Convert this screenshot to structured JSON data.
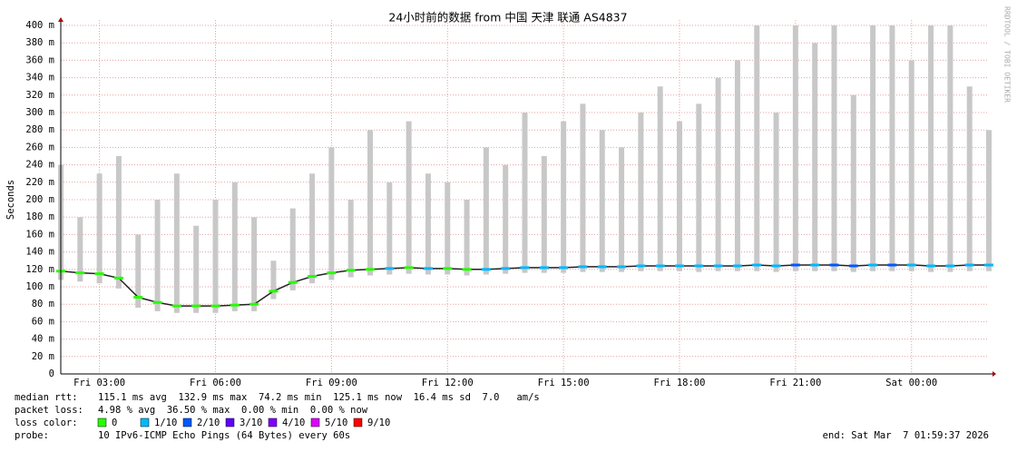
{
  "chart_data": {
    "type": "smokeping",
    "title": "24小时前的数据 from  中国 天津 联通 AS4837",
    "y_label": "Seconds",
    "side_label": "RRDTOOL / TOBI OETIKER",
    "xlim": [
      2,
      26
    ],
    "xticks": [
      {
        "value": 3,
        "label": "Fri 03:00"
      },
      {
        "value": 6,
        "label": "Fri 06:00"
      },
      {
        "value": 9,
        "label": "Fri 09:00"
      },
      {
        "value": 12,
        "label": "Fri 12:00"
      },
      {
        "value": 15,
        "label": "Fri 15:00"
      },
      {
        "value": 18,
        "label": "Fri 18:00"
      },
      {
        "value": 21,
        "label": "Fri 21:00"
      },
      {
        "value": 24,
        "label": "Sat 00:00"
      }
    ],
    "ylim": [
      0,
      400
    ],
    "yticks": [
      0,
      {
        "value": 20,
        "label": "20 m"
      },
      {
        "value": 40,
        "label": "40 m"
      },
      {
        "value": 60,
        "label": "60 m"
      },
      {
        "value": 80,
        "label": "80 m"
      },
      {
        "value": 100,
        "label": "100 m"
      },
      {
        "value": 120,
        "label": "120 m"
      },
      {
        "value": 140,
        "label": "140 m"
      },
      {
        "value": 160,
        "label": "160 m"
      },
      {
        "value": 180,
        "label": "180 m"
      },
      {
        "value": 200,
        "label": "200 m"
      },
      {
        "value": 220,
        "label": "220 m"
      },
      {
        "value": 240,
        "label": "240 m"
      },
      {
        "value": 260,
        "label": "260 m"
      },
      {
        "value": 280,
        "label": "280 m"
      },
      {
        "value": 300,
        "label": "300 m"
      },
      {
        "value": 320,
        "label": "320 m"
      },
      {
        "value": 340,
        "label": "340 m"
      },
      {
        "value": 360,
        "label": "360 m"
      },
      {
        "value": 380,
        "label": "380 m"
      },
      {
        "value": 400,
        "label": "400 m"
      }
    ],
    "grid": true,
    "grid_color": "#e8a0a0",
    "smoke_color": "#c8c8c8",
    "x": [
      2,
      2.5,
      3,
      3.5,
      4,
      4.5,
      5,
      5.5,
      6,
      6.5,
      7,
      7.5,
      8,
      8.5,
      9,
      9.5,
      10,
      10.5,
      11,
      11.5,
      12,
      12.5,
      13,
      13.5,
      14,
      14.5,
      15,
      15.5,
      16,
      16.5,
      17,
      17.5,
      18,
      18.5,
      19,
      19.5,
      20,
      20.5,
      21,
      21.5,
      22,
      22.5,
      23,
      23.5,
      24,
      24.5,
      25,
      25.5,
      26
    ],
    "median": [
      118,
      116,
      115,
      110,
      88,
      82,
      78,
      78,
      78,
      79,
      80,
      95,
      105,
      112,
      116,
      119,
      120,
      121,
      122,
      121,
      121,
      120,
      120,
      121,
      122,
      122,
      122,
      123,
      123,
      123,
      124,
      124,
      124,
      124,
      124,
      124,
      125,
      124,
      125,
      125,
      125,
      124,
      125,
      125,
      125,
      124,
      124,
      125,
      125
    ],
    "smoke_min": [
      108,
      106,
      104,
      98,
      76,
      72,
      70,
      70,
      70,
      72,
      72,
      86,
      96,
      104,
      108,
      111,
      113,
      114,
      115,
      114,
      114,
      113,
      114,
      115,
      116,
      116,
      116,
      117,
      117,
      117,
      118,
      118,
      118,
      117,
      118,
      118,
      118,
      117,
      118,
      118,
      118,
      117,
      118,
      118,
      118,
      117,
      117,
      118,
      118
    ],
    "smoke_max": [
      240,
      180,
      230,
      250,
      160,
      200,
      230,
      170,
      200,
      220,
      180,
      130,
      190,
      230,
      260,
      200,
      280,
      220,
      290,
      230,
      220,
      200,
      260,
      240,
      300,
      250,
      290,
      310,
      280,
      260,
      300,
      330,
      290,
      310,
      340,
      360,
      400,
      300,
      400,
      380,
      400,
      320,
      400,
      400,
      360,
      400,
      400,
      330,
      280
    ],
    "loss_index": [
      0,
      0,
      0,
      0,
      0,
      0,
      0,
      0,
      0,
      0,
      0,
      0,
      0,
      0,
      0,
      0,
      0,
      1,
      0,
      1,
      0,
      0,
      1,
      1,
      1,
      1,
      1,
      1,
      1,
      1,
      1,
      1,
      1,
      1,
      1,
      1,
      1,
      1,
      2,
      1,
      2,
      2,
      1,
      2,
      1,
      1,
      1,
      1,
      1
    ]
  },
  "legend": {
    "median_rtt": {
      "label": "median rtt:",
      "text": "115.1 ms avg  132.9 ms max  74.2 ms min  125.1 ms now  16.4 ms sd  7.0   am/s"
    },
    "packet_loss": {
      "label": "packet loss:",
      "text": "4.98 % avg  36.50 % max  0.00 % min  0.00 % now"
    },
    "loss_color_label": "loss color:",
    "loss_colors": [
      {
        "label": "0",
        "color": "#26ff00"
      },
      {
        "label": "1/10",
        "color": "#00b8ff"
      },
      {
        "label": "2/10",
        "color": "#0059ff"
      },
      {
        "label": "3/10",
        "color": "#5e00ff"
      },
      {
        "label": "4/10",
        "color": "#7e00ff"
      },
      {
        "label": "5/10",
        "color": "#dd00ff"
      },
      {
        "label": "9/10",
        "color": "#ff0000"
      }
    ],
    "probe": {
      "label": "probe:",
      "text": "10 IPv6-ICMP Echo Pings (64 Bytes) every 60s"
    },
    "end": "end: Sat Mar  7 01:59:37 2026"
  }
}
